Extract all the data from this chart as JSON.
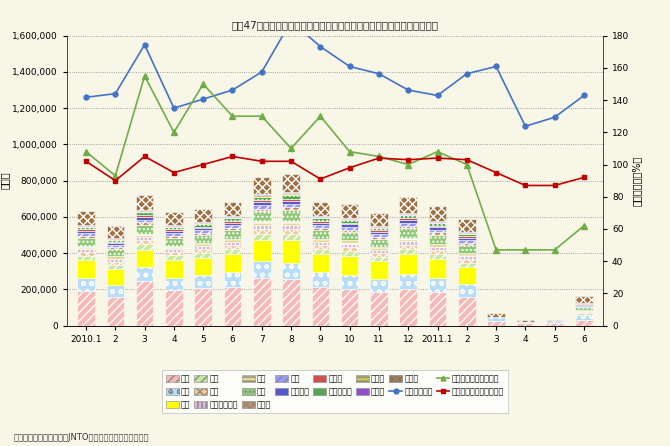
{
  "xlabel_labels": [
    "2010.1",
    "2",
    "3",
    "4",
    "5",
    "6",
    "7",
    "8",
    "9",
    "10",
    "11",
    "12",
    "2011.1",
    "2",
    "3",
    "4",
    "5",
    "6"
  ],
  "source": "資料）日本政府観光局（JNTO）資料より国土交通省作成",
  "yleft_ticks": [
    0,
    200000,
    400000,
    600000,
    800000,
    1000000,
    1200000,
    1400000,
    1600000
  ],
  "yright_ticks": [
    0,
    20,
    40,
    60,
    80,
    100,
    120,
    140,
    160,
    180
  ],
  "bar_data": {
    "Korea": [
      190000,
      155000,
      245000,
      195000,
      205000,
      215000,
      265000,
      255000,
      215000,
      200000,
      185000,
      200000,
      185000,
      155000,
      28000,
      14000,
      14000,
      32000
    ],
    "China": [
      75000,
      68000,
      78000,
      70000,
      73000,
      78000,
      90000,
      92000,
      80000,
      80000,
      72000,
      85000,
      80000,
      72000,
      22000,
      8000,
      9000,
      28000
    ],
    "Taiwan": [
      95000,
      88000,
      95000,
      95000,
      97000,
      100000,
      120000,
      125000,
      100000,
      105000,
      97000,
      108000,
      103000,
      95000,
      0,
      0,
      0,
      0
    ],
    "HK": [
      26000,
      24000,
      30000,
      27000,
      26000,
      28000,
      33000,
      34000,
      28000,
      28000,
      26000,
      30000,
      28000,
      26000,
      0,
      0,
      0,
      9000
    ],
    "Thai": [
      20000,
      18000,
      22000,
      20000,
      20000,
      22000,
      26000,
      28000,
      22000,
      22000,
      20000,
      24000,
      22000,
      20000,
      0,
      0,
      0,
      7000
    ],
    "Singapore": [
      16000,
      14000,
      17000,
      16000,
      16000,
      17000,
      20000,
      21000,
      17000,
      17000,
      16000,
      18000,
      17000,
      16000,
      0,
      0,
      0,
      5000
    ],
    "Australia": [
      17000,
      15000,
      19000,
      17000,
      17000,
      18000,
      21000,
      23000,
      18000,
      18000,
      17000,
      19000,
      18000,
      17000,
      0,
      0,
      0,
      5000
    ],
    "USA": [
      45000,
      41000,
      50000,
      45000,
      45000,
      47000,
      56000,
      59000,
      47000,
      47000,
      45000,
      52000,
      48000,
      45000,
      0,
      0,
      0,
      15000
    ],
    "Canada": [
      12000,
      10000,
      13000,
      12000,
      12000,
      13000,
      15000,
      16000,
      13000,
      13000,
      12000,
      14000,
      13000,
      12000,
      0,
      0,
      0,
      4000
    ],
    "UK": [
      14000,
      12000,
      16000,
      14000,
      14000,
      15000,
      18000,
      19000,
      15000,
      15000,
      14000,
      17000,
      15000,
      14000,
      0,
      0,
      0,
      5000
    ],
    "France": [
      12000,
      10000,
      14000,
      12000,
      12000,
      13000,
      16000,
      17000,
      13000,
      13000,
      12000,
      14000,
      13000,
      12000,
      0,
      0,
      0,
      4000
    ],
    "Germany": [
      9000,
      8000,
      10000,
      9000,
      9000,
      10000,
      12000,
      12000,
      10000,
      10000,
      9000,
      11000,
      10000,
      9000,
      0,
      0,
      0,
      3000
    ],
    "Malaysia": [
      14000,
      12000,
      16000,
      14000,
      14000,
      15000,
      18000,
      19000,
      15000,
      15000,
      14000,
      17000,
      15000,
      14000,
      0,
      0,
      0,
      5000
    ],
    "India": [
      6000,
      5000,
      7000,
      6000,
      6000,
      7000,
      8000,
      9000,
      7000,
      7000,
      6000,
      8000,
      7000,
      6000,
      0,
      0,
      0,
      2000
    ],
    "Russia": [
      4000,
      3000,
      5000,
      4000,
      4000,
      5000,
      6000,
      7000,
      5000,
      5000,
      4000,
      6000,
      5000,
      4000,
      0,
      0,
      0,
      1000
    ],
    "Other": [
      75000,
      68000,
      82000,
      73000,
      75000,
      78000,
      95000,
      100000,
      78000,
      78000,
      72000,
      88000,
      80000,
      72000,
      17000,
      8000,
      9000,
      36000
    ]
  },
  "line_outbound": [
    1260000,
    1280000,
    1550000,
    1200000,
    1250000,
    1300000,
    1400000,
    1680000,
    1540000,
    1430000,
    1390000,
    1300000,
    1270000,
    1390000,
    1430000,
    1100000,
    1150000,
    1270000
  ],
  "line_visitor_yoy": [
    108,
    93,
    155,
    120,
    150,
    130,
    130,
    110,
    130,
    108,
    105,
    100,
    108,
    100,
    47,
    47,
    47,
    62
  ],
  "line_outbound_yoy": [
    102,
    90,
    105,
    95,
    100,
    105,
    102,
    102,
    91,
    98,
    104,
    103,
    104,
    103,
    95,
    87,
    87,
    92
  ],
  "color_Korea": "#f9b8b8",
  "color_China": "#b8ddf9",
  "color_Taiwan": "#ffff00",
  "color_HK": "#c8e8a0",
  "color_Thai": "#f0c890",
  "color_Singapore": "#d8b8d8",
  "color_Australia": "#e8d890",
  "color_USA": "#90c878",
  "color_Canada": "#c89060",
  "color_UK": "#9898ff",
  "color_France": "#5858cc",
  "color_Germany": "#cc5050",
  "color_Malaysia": "#50aa50",
  "color_India": "#c8c850",
  "color_Russia": "#9050c8",
  "color_Other": "#a07040",
  "hatch_Korea": "////",
  "hatch_China": "o o",
  "hatch_Taiwan": "",
  "hatch_HK": "////",
  "hatch_Thai": "xxxx",
  "hatch_Singapore": "||||",
  "hatch_Australia": "----",
  "hatch_USA": "....",
  "hatch_Canada": "xxxx",
  "hatch_UK": "////",
  "hatch_France": "",
  "hatch_Germany": "",
  "hatch_Malaysia": "....",
  "hatch_India": "----",
  "hatch_Russia": "",
  "hatch_Other": "xxxx",
  "line_outbound_color": "#4472c4",
  "line_visitor_yoy_color": "#70ad47",
  "line_outbound_yoy_color": "#c00000",
  "bg_color": "#f7f6e7",
  "legend_labels": {
    "Korea": "韓国",
    "China": "中国",
    "Taiwan": "台湾",
    "HK": "香港",
    "Thai": "タイ",
    "Singapore": "シンガポール",
    "Australia": "豪州",
    "USA": "米国",
    "Canada": "カナダ",
    "UK": "英国",
    "France": "フランス",
    "Germany": "ドイツ",
    "Malaysia": "マレーシア",
    "India": "インド",
    "Russia": "ロシア",
    "Other": "その他"
  }
}
